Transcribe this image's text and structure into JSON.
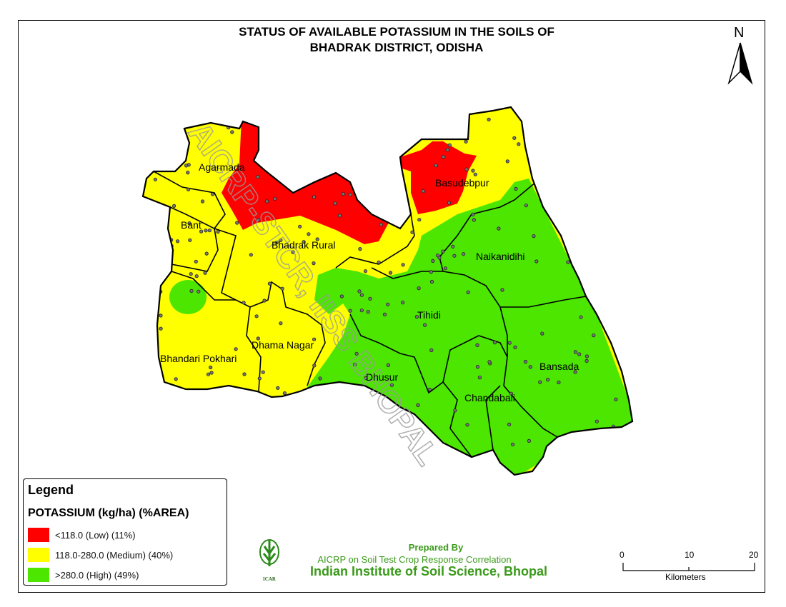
{
  "title": {
    "line1": "STATUS OF AVAILABLE POTASSIUM IN THE SOILS OF",
    "line2": "BHADRAK DISTRICT, ODISHA"
  },
  "north_arrow": {
    "label": "N"
  },
  "blocks": [
    {
      "name": "Agarmada"
    },
    {
      "name": "Bant"
    },
    {
      "name": "Bhadrak Rural"
    },
    {
      "name": "Basudebpur"
    },
    {
      "name": "Naikanidihi"
    },
    {
      "name": "Tihidi"
    },
    {
      "name": "Dhama Nagar"
    },
    {
      "name": "Bhandari Pokhari"
    },
    {
      "name": "Dhusur"
    },
    {
      "name": "Chandabali"
    },
    {
      "name": "Bansada"
    }
  ],
  "watermark": "AICRP-STCR, IISS BHOPAL",
  "legend": {
    "heading": "Legend",
    "title": "POTASSIUM (kg/ha) (%AREA)",
    "classes": [
      {
        "label": "<118.0 (Low) (11%)",
        "color": "#ff0000",
        "percent": 11
      },
      {
        "label": "118.0-280.0 (Medium) (40%)",
        "color": "#ffff00",
        "percent": 40
      },
      {
        "label": ">280.0 (High) (49%)",
        "color": "#4ce600",
        "percent": 49
      }
    ]
  },
  "credit": {
    "prepared_by": "Prepared By",
    "org": "AICRP on Soil Test Crop Response Correlation",
    "institute": "Indian Institute of Soil Science, Bhopal",
    "logo_text": "ICAR"
  },
  "scale_bar": {
    "ticks": [
      "0",
      "10",
      "20"
    ],
    "unit": "Kilometers"
  }
}
